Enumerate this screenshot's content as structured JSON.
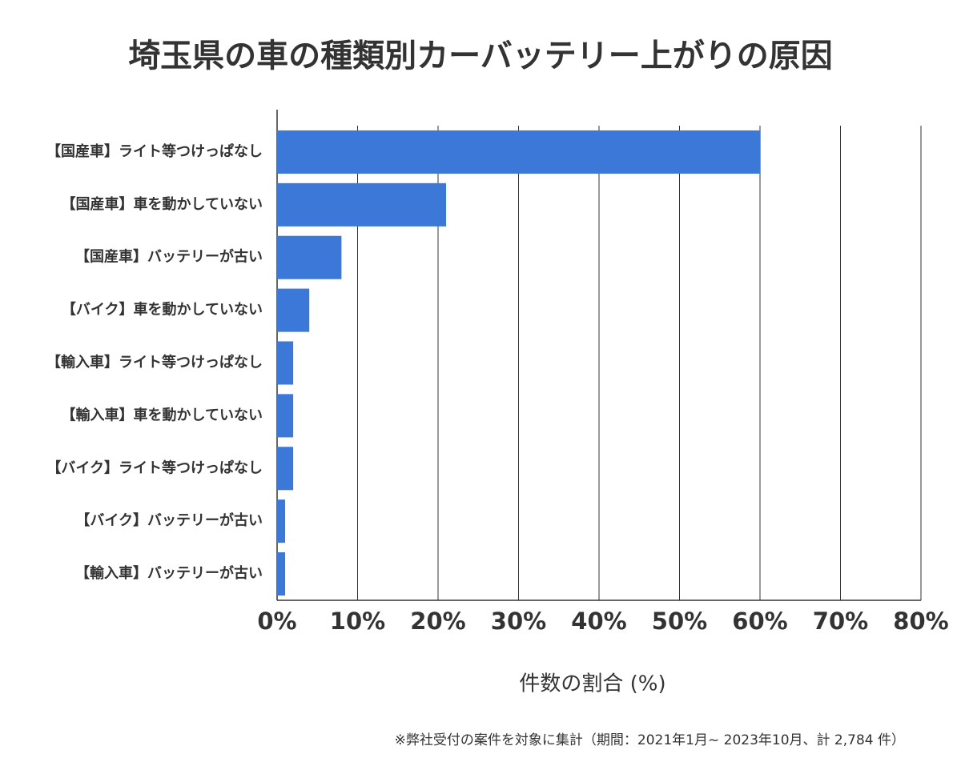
{
  "chart_data": {
    "type": "bar",
    "orientation": "horizontal",
    "title": "埼玉県の車の種類別カーバッテリー上がりの原因",
    "x_label": "件数の割合 (%)",
    "footnote": "※弊社受付の案件を対象に集計（期間：2021年1月~ 2023年10月、計 2,784 件）",
    "categories": [
      "【国産車】ライト等つけっぱなし",
      "【国産車】車を動かしていない",
      "【国産車】バッテリーが古い",
      "【バイク】車を動かしていない",
      "【輸入車】ライト等つけっぱなし",
      "【輸入車】車を動かしていない",
      "【バイク】ライト等つけっぱなし",
      "【バイク】バッテリーが古い",
      "【輸入車】バッテリーが古い"
    ],
    "values": [
      60,
      21,
      8,
      4,
      2,
      2,
      2,
      1,
      1
    ],
    "color": "#3b78d8",
    "xlim": [
      0,
      80
    ],
    "xticks": [
      {
        "value": 0,
        "label": "0%"
      },
      {
        "value": 10,
        "label": "10%"
      },
      {
        "value": 20,
        "label": "20%"
      },
      {
        "value": 30,
        "label": "30%"
      },
      {
        "value": 40,
        "label": "40%"
      },
      {
        "value": 50,
        "label": "50%"
      },
      {
        "value": 60,
        "label": "60%"
      },
      {
        "value": 70,
        "label": "70%"
      },
      {
        "value": 80,
        "label": "80%"
      }
    ],
    "grid": true
  }
}
